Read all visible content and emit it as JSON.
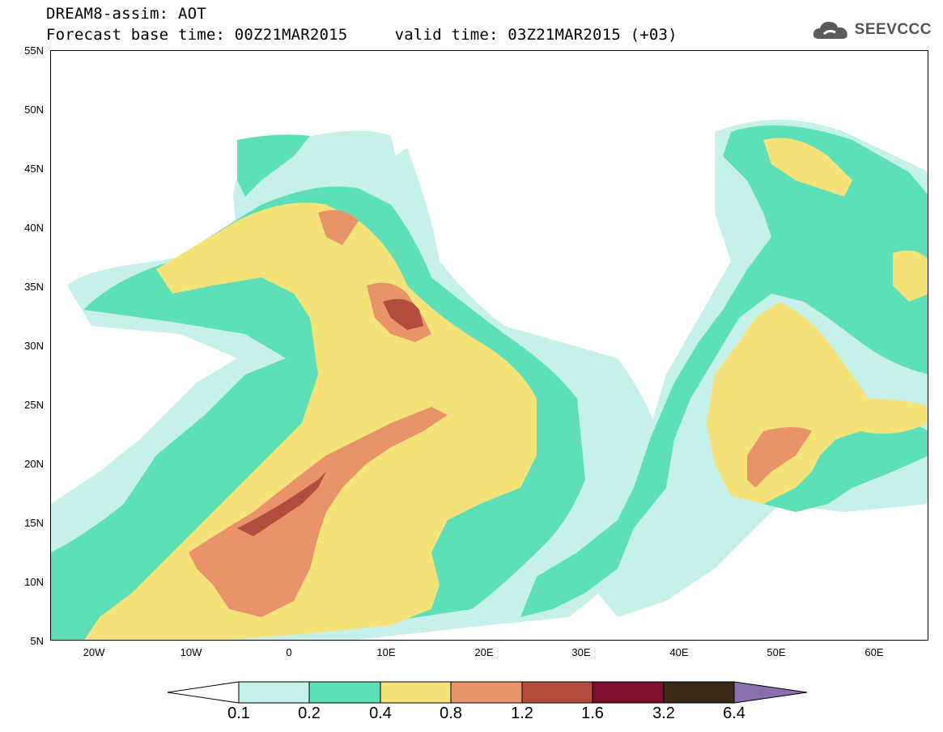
{
  "header": {
    "title": "DREAM8-assim: AOT",
    "subtitle": "Forecast base time: 00Z21MAR2015     valid time: 03Z21MAR2015 (+03)",
    "logo_text": "SEEVCCC",
    "logo_icon": "cloud-icon"
  },
  "map": {
    "projection": "lat-lon",
    "lon_range": [
      -25,
      65
    ],
    "lat_range": [
      5,
      55
    ],
    "latitude_labels": [
      "55N",
      "50N",
      "45N",
      "40N",
      "35N",
      "30N",
      "25N",
      "20N",
      "15N",
      "10N",
      "5N"
    ],
    "longitude_labels": [
      "20W",
      "10W",
      "0",
      "10E",
      "20E",
      "30E",
      "40E",
      "50E",
      "60E"
    ],
    "gridlines": "dotted"
  },
  "colorbar": {
    "labels": [
      "0.1",
      "0.2",
      "0.4",
      "0.8",
      "1.2",
      "1.6",
      "3.2",
      "6.4"
    ],
    "colors": [
      "#ffffff",
      "#c6f0ea",
      "#5de0b8",
      "#f5e37a",
      "#e9936a",
      "#b24c3f",
      "#7b0f2c",
      "#3d2a17",
      "#8c6fb0"
    ]
  }
}
